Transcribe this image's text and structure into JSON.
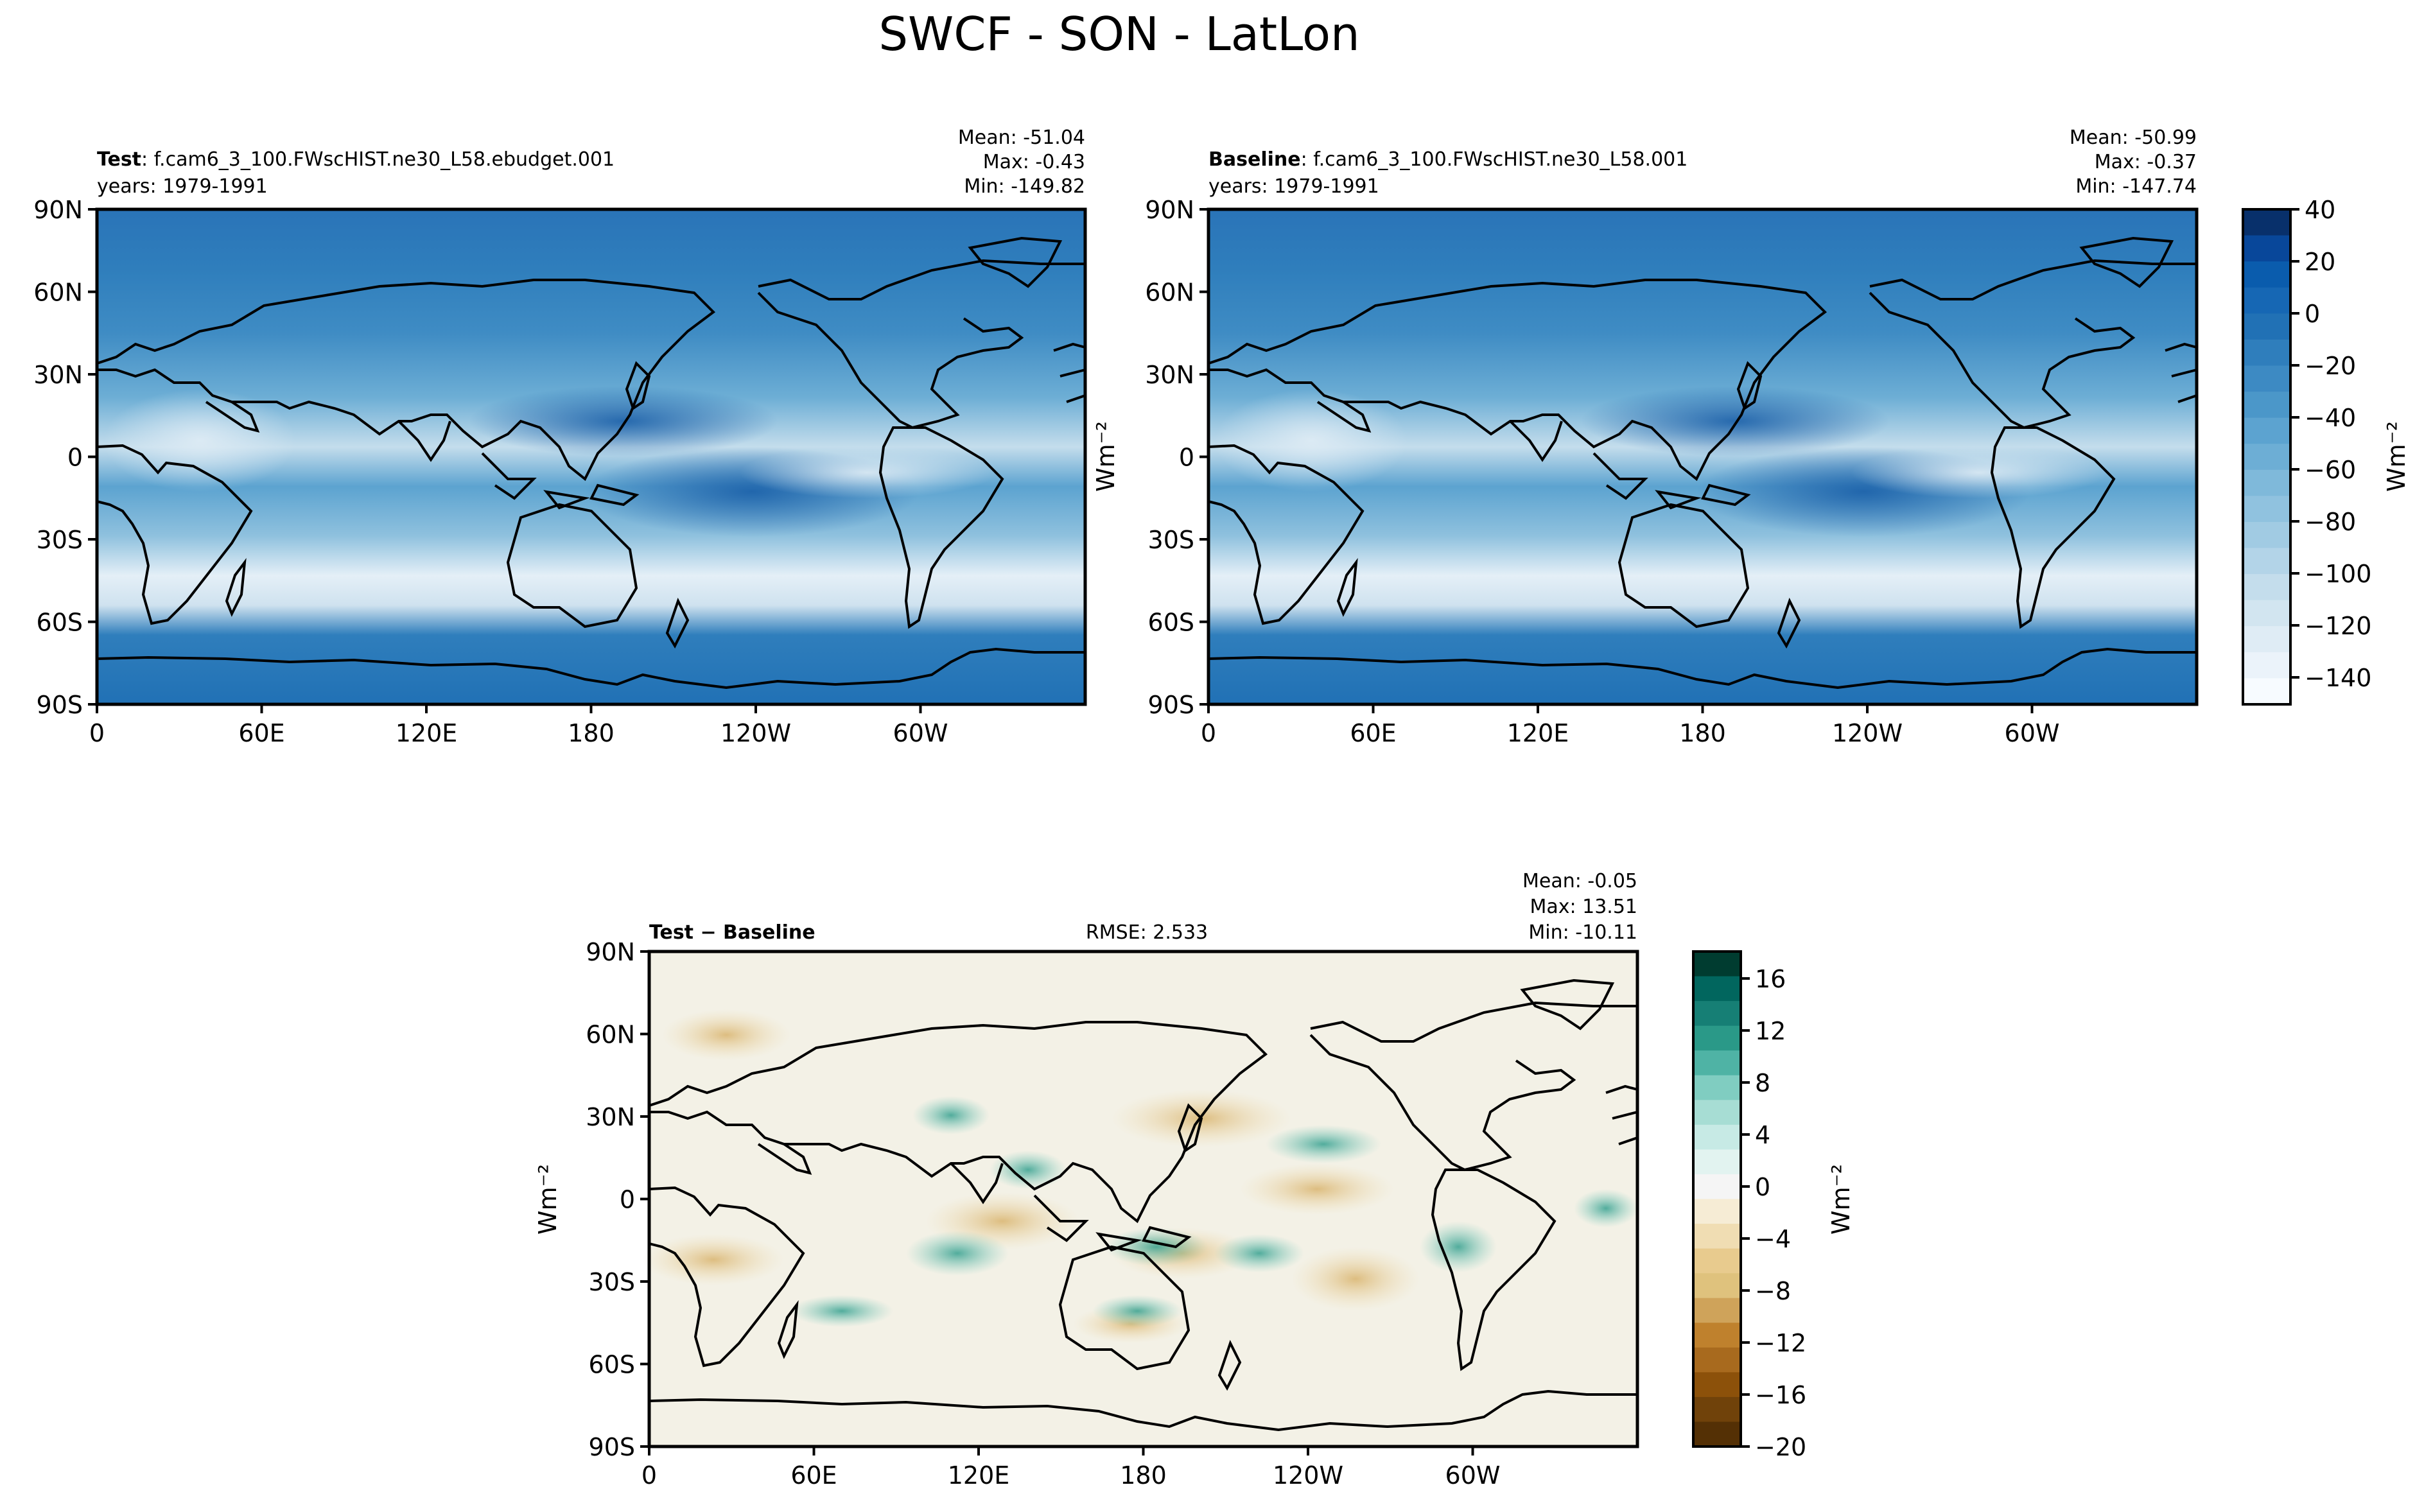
{
  "figure": {
    "title": "SWCF - SON - LatLon"
  },
  "axes": {
    "lat_ticks": [
      "90N",
      "60N",
      "30N",
      "0",
      "30S",
      "60S",
      "90S"
    ],
    "lon_ticks": [
      "0",
      "60E",
      "120E",
      "180",
      "120W",
      "60W"
    ]
  },
  "test": {
    "label_bold": "Test",
    "label_case": ": f.cam6_3_100.FWscHIST.ne30_L58.ebudget.001",
    "years": "years: 1979-1991",
    "mean": "Mean: -51.04",
    "max": "Max: -0.43",
    "min": "Min: -149.82"
  },
  "baseline": {
    "label_bold": "Baseline",
    "label_case": ": f.cam6_3_100.FWscHIST.ne30_L58.001",
    "years": "years: 1979-1991",
    "mean": "Mean: -50.99",
    "max": "Max: -0.37",
    "min": "Min: -147.74"
  },
  "diff": {
    "label": "Test − Baseline",
    "rmse": "RMSE: 2.533",
    "mean": "Mean: -0.05",
    "max": "Max: 13.51",
    "min": "Min: -10.11"
  },
  "colorbar_main": {
    "label": "Wm⁻²",
    "ticks": [
      "40",
      "20",
      "0",
      "−20",
      "−40",
      "−60",
      "−80",
      "−100",
      "−120",
      "−140"
    ],
    "colors": [
      "#08306b",
      "#08479a",
      "#0a5cad",
      "#1667b4",
      "#2171b5",
      "#2f7ebc",
      "#3d8ac3",
      "#4b97c9",
      "#5ca3d0",
      "#6daed5",
      "#7fb9da",
      "#90c2df",
      "#a1cbe3",
      "#b3d4e8",
      "#c4ddec",
      "#d2e5f0",
      "#dfecf5",
      "#ebf3fa",
      "#f7fbff"
    ]
  },
  "colorbar_diff": {
    "label": "Wm⁻²",
    "ticks": [
      "16",
      "12",
      "8",
      "4",
      "0",
      "−4",
      "−8",
      "−12",
      "−16",
      "−20"
    ],
    "colors": [
      "#003c30",
      "#01665e",
      "#167f75",
      "#2a9988",
      "#4fb3a5",
      "#80cdc1",
      "#a7ddd4",
      "#c7eae5",
      "#e2f3f0",
      "#f5f5f5",
      "#f6ecd5",
      "#f0ddb3",
      "#e8cb8e",
      "#dfc27d",
      "#cfa35a",
      "#bf812d",
      "#a86a1e",
      "#8c510a",
      "#70420a",
      "#543005"
    ]
  },
  "legend_wm": "Wm⁻²"
}
